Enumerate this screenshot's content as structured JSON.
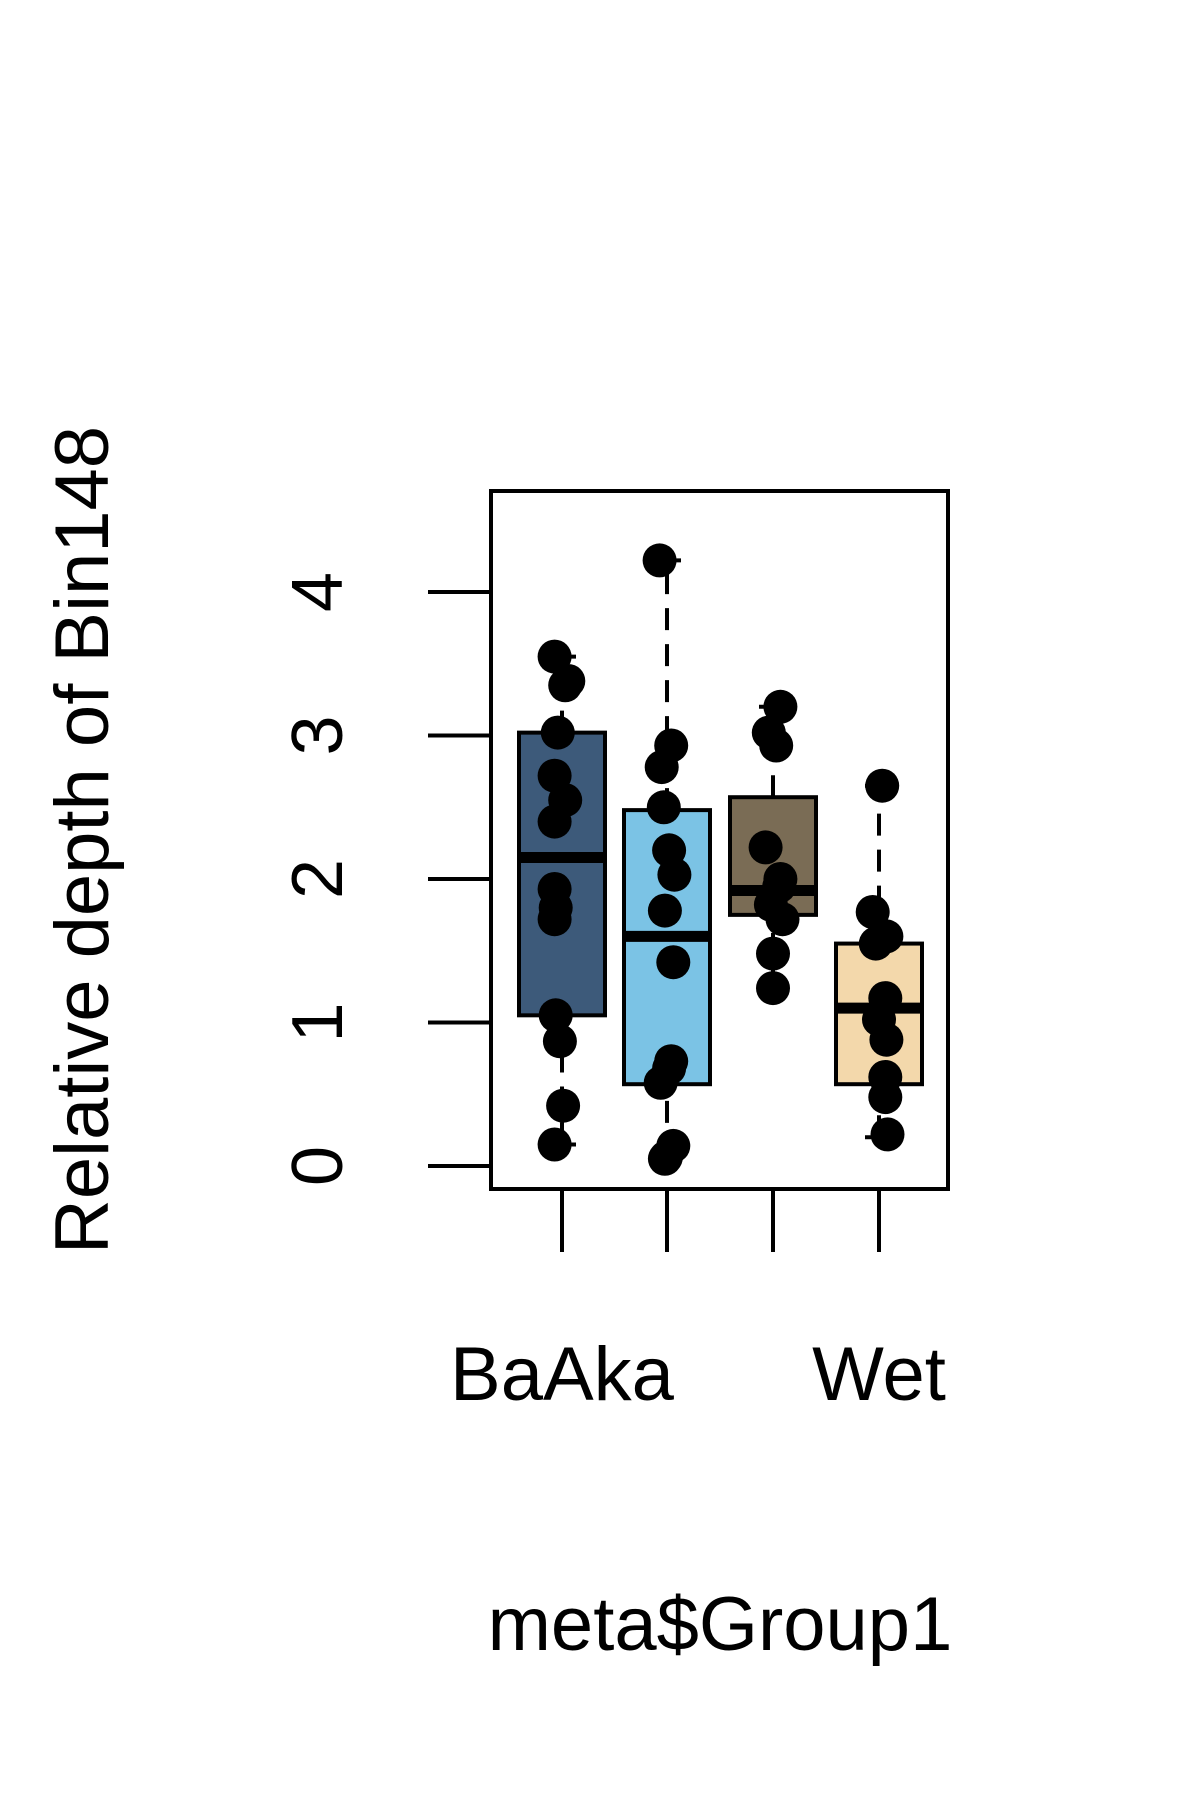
{
  "chart_data": {
    "type": "box",
    "xlabel": "meta$Group1",
    "ylabel": "Relative depth of Bin148",
    "ylim": [
      0,
      4.35
    ],
    "yticks": [
      0,
      1,
      2,
      3,
      4
    ],
    "grid": false,
    "legend": "none",
    "groups": [
      {
        "tick_label": "BaAka",
        "color": "#3d5a7a",
        "stats": {
          "min": 0.15,
          "q1": 1.05,
          "median": 2.15,
          "q3": 3.02,
          "max": 3.55
        },
        "points": [
          {
            "x": 0.93,
            "y": 0.15
          },
          {
            "x": 1.01,
            "y": 0.42
          },
          {
            "x": 0.98,
            "y": 0.87
          },
          {
            "x": 0.94,
            "y": 1.05
          },
          {
            "x": 0.93,
            "y": 1.72
          },
          {
            "x": 0.94,
            "y": 1.8
          },
          {
            "x": 0.93,
            "y": 1.93
          },
          {
            "x": 0.93,
            "y": 2.4
          },
          {
            "x": 1.03,
            "y": 2.55
          },
          {
            "x": 0.93,
            "y": 2.72
          },
          {
            "x": 0.96,
            "y": 3.02
          },
          {
            "x": 1.03,
            "y": 3.35
          },
          {
            "x": 1.06,
            "y": 3.38
          },
          {
            "x": 0.93,
            "y": 3.55
          }
        ]
      },
      {
        "tick_label": "",
        "color": "#7bc3e5",
        "stats": {
          "min": 0.05,
          "q1": 0.57,
          "median": 1.6,
          "q3": 2.48,
          "max": 4.22
        },
        "points": [
          {
            "x": 1.98,
            "y": 0.05
          },
          {
            "x": 1.99,
            "y": 0.06
          },
          {
            "x": 2.06,
            "y": 0.14
          },
          {
            "x": 1.94,
            "y": 0.58
          },
          {
            "x": 2.02,
            "y": 0.68
          },
          {
            "x": 2.04,
            "y": 0.73
          },
          {
            "x": 2.06,
            "y": 1.42
          },
          {
            "x": 1.98,
            "y": 1.78
          },
          {
            "x": 2.07,
            "y": 2.03
          },
          {
            "x": 2.02,
            "y": 2.2
          },
          {
            "x": 1.97,
            "y": 2.5
          },
          {
            "x": 1.95,
            "y": 2.78
          },
          {
            "x": 2.04,
            "y": 2.93
          },
          {
            "x": 1.93,
            "y": 4.22
          }
        ]
      },
      {
        "tick_label": "",
        "color": "#7a6c55",
        "stats": {
          "min": 1.22,
          "q1": 1.75,
          "median": 1.92,
          "q3": 2.57,
          "max": 3.2
        },
        "points": [
          {
            "x": 3.0,
            "y": 1.24
          },
          {
            "x": 3.0,
            "y": 1.48
          },
          {
            "x": 3.09,
            "y": 1.72
          },
          {
            "x": 2.98,
            "y": 1.82
          },
          {
            "x": 3.06,
            "y": 1.95
          },
          {
            "x": 3.07,
            "y": 2.0
          },
          {
            "x": 2.93,
            "y": 2.22
          },
          {
            "x": 3.03,
            "y": 2.93
          },
          {
            "x": 2.96,
            "y": 3.02
          },
          {
            "x": 3.07,
            "y": 3.2
          }
        ]
      },
      {
        "tick_label": "Wet",
        "color": "#f3d8ab",
        "stats": {
          "min": 0.2,
          "q1": 0.57,
          "median": 1.1,
          "q3": 1.55,
          "max": 2.65
        },
        "points": [
          {
            "x": 4.08,
            "y": 0.22
          },
          {
            "x": 4.06,
            "y": 0.48
          },
          {
            "x": 4.06,
            "y": 0.62
          },
          {
            "x": 4.07,
            "y": 0.88
          },
          {
            "x": 4.0,
            "y": 1.02
          },
          {
            "x": 4.06,
            "y": 1.17
          },
          {
            "x": 3.97,
            "y": 1.55
          },
          {
            "x": 4.07,
            "y": 1.6
          },
          {
            "x": 3.94,
            "y": 1.77
          },
          {
            "x": 4.03,
            "y": 2.65
          }
        ]
      }
    ]
  }
}
